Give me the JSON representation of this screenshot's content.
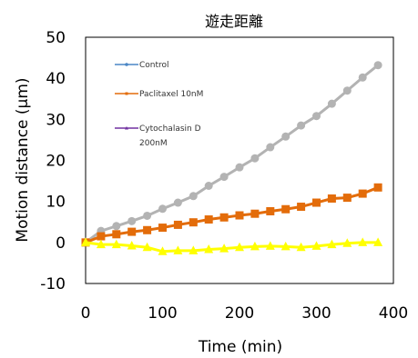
{
  "chart_data": {
    "type": "line",
    "title": "遊走距離",
    "xlabel": "Time (min)",
    "ylabel": "Motion distance (μm)",
    "xlim": [
      0,
      400
    ],
    "ylim": [
      -10,
      50
    ],
    "xticks": [
      "0",
      "100",
      "200",
      "300",
      "400"
    ],
    "yticks": [
      "-10",
      "0",
      "10",
      "20",
      "30",
      "40",
      "50"
    ],
    "grid": false,
    "legend_position": "top-left-inside",
    "x": [
      0,
      20,
      40,
      60,
      80,
      100,
      120,
      140,
      160,
      180,
      200,
      220,
      240,
      260,
      280,
      300,
      320,
      340,
      360,
      380
    ],
    "series": [
      {
        "name": "Control",
        "color": "#b3b3b3",
        "legend_color": "#4a86c5",
        "marker": "circle",
        "values": [
          0,
          2.8,
          4.0,
          5.2,
          6.5,
          8.2,
          9.7,
          11.3,
          13.8,
          16.0,
          18.3,
          20.5,
          23.2,
          25.8,
          28.5,
          30.8,
          33.8,
          37.0,
          40.2,
          43.2
        ]
      },
      {
        "name": "Paclitaxel 10nM",
        "color": "#e36c0a",
        "legend_color": "#e36c0a",
        "marker": "square",
        "values": [
          0,
          1.5,
          2.0,
          2.6,
          3.0,
          3.6,
          4.3,
          4.9,
          5.6,
          6.1,
          6.6,
          7.0,
          7.6,
          8.1,
          8.7,
          9.7,
          10.7,
          10.9,
          11.9,
          13.4
        ]
      },
      {
        "name": "Cytochalasin D 200nM",
        "name_lines": [
          "Cytochalasin D",
          "200nM"
        ],
        "color": "#ffff00",
        "legend_color": "#7030a0",
        "marker": "triangle",
        "values": [
          0,
          -0.5,
          -0.5,
          -0.8,
          -1.2,
          -2.2,
          -2.0,
          -2.0,
          -1.7,
          -1.5,
          -1.2,
          -1.0,
          -0.9,
          -1.0,
          -1.2,
          -0.9,
          -0.5,
          -0.2,
          0.0,
          0.0
        ]
      }
    ]
  }
}
